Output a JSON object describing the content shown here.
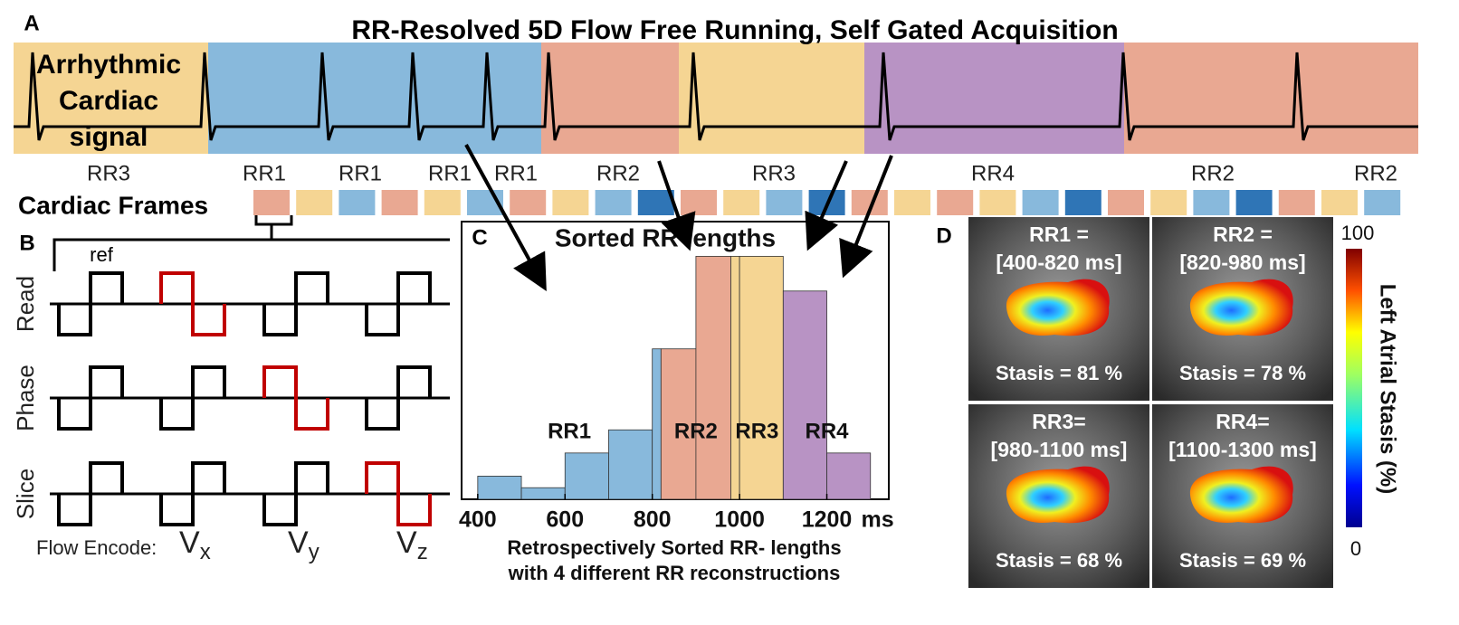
{
  "title": "RR-Resolved 5D Flow Free Running, Self Gated Acquisition",
  "panel_a": {
    "label": "A",
    "signal_label": [
      "Arrhythmic",
      "Cardiac",
      "signal"
    ],
    "rr_labels": [
      "RR3",
      "RR1",
      "RR1",
      "RR1",
      "RR1",
      "RR2",
      "RR3",
      "RR4",
      "RR2",
      "RR2"
    ],
    "frames_label": "Cardiac Frames"
  },
  "panel_b": {
    "label": "B",
    "ref_label": "ref",
    "axes": [
      "Read",
      "Phase",
      "Slice"
    ],
    "flow_encode_label": "Flow Encode:",
    "encodes": [
      {
        "base": "V",
        "sub": "x"
      },
      {
        "base": "V",
        "sub": "y"
      },
      {
        "base": "V",
        "sub": "z"
      }
    ]
  },
  "chart_data": {
    "type": "histogram",
    "label": "C",
    "title": "Sorted RR lengths",
    "bins": [
      400,
      500,
      600,
      700,
      800,
      900,
      1000,
      1100,
      1200,
      1300
    ],
    "values": [
      0.4,
      0.2,
      0.8,
      1.2,
      2.6,
      4.2,
      4.2,
      3.6,
      0.8
    ],
    "xlim": [
      363,
      1342
    ],
    "ylim": [
      0,
      4.8
    ],
    "xticks": [
      400,
      600,
      800,
      1000,
      1200
    ],
    "x_unit": "ms",
    "xlabel": [
      "Retrospectively Sorted RR- lengths",
      "with 4 different RR reconstructions"
    ],
    "regions": [
      {
        "name": "RR1",
        "range": [
          400,
          820
        ],
        "color": "#88b9dc"
      },
      {
        "name": "RR2",
        "range": [
          820,
          980
        ],
        "color": "#e9a892"
      },
      {
        "name": "RR3",
        "range": [
          980,
          1100
        ],
        "color": "#f5d593"
      },
      {
        "name": "RR4",
        "range": [
          1100,
          1300
        ],
        "color": "#b893c4"
      }
    ]
  },
  "panel_d": {
    "label": "D",
    "maps": [
      {
        "name": "RR1 =",
        "range": "[400-820 ms]",
        "stasis": "Stasis = 81 %"
      },
      {
        "name": "RR2 =",
        "range": "[820-980 ms]",
        "stasis": "Stasis = 78 %"
      },
      {
        "name": "RR3=",
        "range": "[980-1100 ms]",
        "stasis": "Stasis = 68 %"
      },
      {
        "name": "RR4=",
        "range": "[1100-1300 ms]",
        "stasis": "Stasis = 69 %"
      }
    ],
    "colorbar": {
      "label": "Left Atrial Stasis  (%)",
      "max": 100,
      "min": 0
    }
  }
}
